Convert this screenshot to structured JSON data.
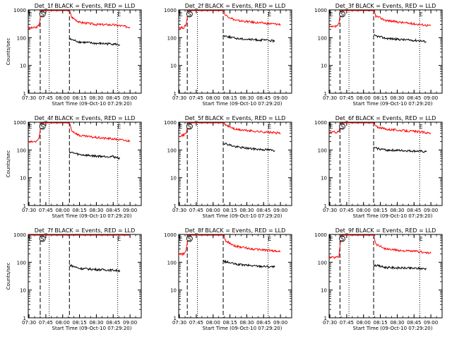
{
  "chart_data": [
    {
      "type": "line",
      "title": "Det_1f BLACK = Events, RED = LLD",
      "xlabel": "Start Time (09-Oct-10 07:29:20)",
      "ylabel": "Counts/sec",
      "yscale": "log",
      "ylim": [
        1,
        1000
      ],
      "x_ticks": [
        "07:30",
        "07:45",
        "08:00",
        "08:15",
        "08:30",
        "08:45",
        "09:00"
      ],
      "y_ticks": [
        "1",
        "10",
        "100",
        "1000"
      ],
      "markers": [
        {
          "label": "E",
          "time": "07:30"
        },
        {
          "label": "S",
          "time": "07:42"
        },
        {
          "label": "E",
          "time": "08:49"
        }
      ],
      "dashed_times": [
        "07:40",
        "08:06"
      ],
      "dotted_times": [
        "07:48",
        "08:49"
      ],
      "series": [
        {
          "name": "RED",
          "color": "#ff0000",
          "points": [
            [
              "07:29:20",
              220
            ],
            [
              "07:36",
              230
            ],
            [
              "07:39",
              280
            ],
            [
              "07:41",
              1000
            ],
            [
              "08:05",
              1000
            ],
            [
              "08:06",
              1000
            ],
            [
              "08:08",
              550
            ],
            [
              "08:15",
              360
            ],
            [
              "08:30",
              300
            ],
            [
              "08:45",
              290
            ],
            [
              "09:00",
              240
            ]
          ]
        },
        {
          "name": "BLACK",
          "color": "#000000",
          "points": [
            [
              "08:06",
              90
            ],
            [
              "08:15",
              70
            ],
            [
              "08:30",
              62
            ],
            [
              "08:45",
              60
            ],
            [
              "08:51",
              55
            ]
          ]
        }
      ]
    },
    {
      "type": "line",
      "title": "Det_2f BLACK = Events, RED = LLD",
      "xlabel": "Start Time (09-Oct-10 07:29:20)",
      "ylabel": "",
      "yscale": "log",
      "ylim": [
        1,
        1000
      ],
      "x_ticks": [
        "07:30",
        "07:45",
        "08:00",
        "08:15",
        "08:30",
        "08:45",
        "09:00"
      ],
      "y_ticks": [
        "1",
        "10",
        "100",
        "1000"
      ],
      "markers": [
        {
          "label": "E",
          "time": "07:30"
        },
        {
          "label": "S",
          "time": "07:39"
        },
        {
          "label": "E",
          "time": "08:49"
        }
      ],
      "dashed_times": [
        "07:37",
        "08:09"
      ],
      "dotted_times": [
        "07:46",
        "08:49"
      ],
      "series": [
        {
          "name": "RED",
          "color": "#ff0000",
          "points": [
            [
              "07:29:20",
              230
            ],
            [
              "07:34",
              230
            ],
            [
              "07:36",
              300
            ],
            [
              "07:38",
              1000
            ],
            [
              "08:08",
              1000
            ],
            [
              "08:09",
              1000
            ],
            [
              "08:11",
              650
            ],
            [
              "08:20",
              420
            ],
            [
              "08:35",
              360
            ],
            [
              "08:50",
              320
            ],
            [
              "09:00",
              300
            ]
          ]
        },
        {
          "name": "BLACK",
          "color": "#000000",
          "points": [
            [
              "08:09",
              120
            ],
            [
              "08:20",
              95
            ],
            [
              "08:35",
              85
            ],
            [
              "08:50",
              80
            ],
            [
              "08:55",
              75
            ]
          ]
        }
      ]
    },
    {
      "type": "line",
      "title": "Det_3f BLACK = Events, RED = LLD",
      "xlabel": "Start Time (09-Oct-10 07:29:20)",
      "ylabel": "",
      "yscale": "log",
      "ylim": [
        1,
        1000
      ],
      "x_ticks": [
        "07:30",
        "07:45",
        "08:00",
        "08:15",
        "08:30",
        "08:45",
        "09:00"
      ],
      "y_ticks": [
        "1",
        "10",
        "100",
        "1000"
      ],
      "markers": [
        {
          "label": "E",
          "time": "07:30"
        },
        {
          "label": "S",
          "time": "07:41"
        },
        {
          "label": "E",
          "time": "08:50"
        }
      ],
      "dashed_times": [
        "07:39",
        "08:09"
      ],
      "dotted_times": [
        "07:47",
        "08:50"
      ],
      "series": [
        {
          "name": "RED",
          "color": "#ff0000",
          "points": [
            [
              "07:29:20",
              240
            ],
            [
              "07:35",
              250
            ],
            [
              "07:38",
              300
            ],
            [
              "07:40",
              1000
            ],
            [
              "08:08",
              1000
            ],
            [
              "08:09",
              1000
            ],
            [
              "08:11",
              600
            ],
            [
              "08:20",
              420
            ],
            [
              "08:35",
              350
            ],
            [
              "08:50",
              300
            ],
            [
              "09:00",
              270
            ]
          ]
        },
        {
          "name": "BLACK",
          "color": "#000000",
          "points": [
            [
              "08:09",
              120
            ],
            [
              "08:20",
              95
            ],
            [
              "08:35",
              85
            ],
            [
              "08:50",
              78
            ],
            [
              "08:56",
              72
            ]
          ]
        }
      ]
    },
    {
      "type": "line",
      "title": "Det_4f BLACK = Events, RED = LLD",
      "xlabel": "Start Time (09-Oct-10 07:29:20)",
      "ylabel": "Counts/sec",
      "yscale": "log",
      "ylim": [
        1,
        1000
      ],
      "x_ticks": [
        "07:30",
        "07:45",
        "08:00",
        "08:15",
        "08:30",
        "08:45",
        "09:00"
      ],
      "y_ticks": [
        "1",
        "10",
        "100",
        "1000"
      ],
      "markers": [
        {
          "label": "E",
          "time": "07:30"
        },
        {
          "label": "S",
          "time": "07:42"
        },
        {
          "label": "E",
          "time": "08:49"
        }
      ],
      "dashed_times": [
        "07:40",
        "08:06"
      ],
      "dotted_times": [
        "07:48",
        "08:49"
      ],
      "series": [
        {
          "name": "RED",
          "color": "#ff0000",
          "points": [
            [
              "07:29:20",
              190
            ],
            [
              "07:36",
              200
            ],
            [
              "07:39",
              260
            ],
            [
              "07:41",
              1000
            ],
            [
              "08:05",
              1000
            ],
            [
              "08:06",
              1000
            ],
            [
              "08:08",
              500
            ],
            [
              "08:15",
              330
            ],
            [
              "08:30",
              280
            ],
            [
              "08:45",
              250
            ],
            [
              "09:00",
              210
            ]
          ]
        },
        {
          "name": "BLACK",
          "color": "#000000",
          "points": [
            [
              "08:06",
              85
            ],
            [
              "08:15",
              68
            ],
            [
              "08:30",
              60
            ],
            [
              "08:45",
              58
            ],
            [
              "08:51",
              50
            ]
          ]
        }
      ]
    },
    {
      "type": "line",
      "title": "Det_5f BLACK = Events, RED = LLD",
      "xlabel": "Start Time (09-Oct-10 07:29:20)",
      "ylabel": "",
      "yscale": "log",
      "ylim": [
        1,
        1000
      ],
      "x_ticks": [
        "07:30",
        "07:45",
        "08:00",
        "08:15",
        "08:30",
        "08:45",
        "09:00"
      ],
      "y_ticks": [
        "1",
        "10",
        "100",
        "1000"
      ],
      "markers": [
        {
          "label": "E",
          "time": "07:30"
        },
        {
          "label": "S",
          "time": "07:39"
        },
        {
          "label": "E",
          "time": "08:49"
        }
      ],
      "dashed_times": [
        "07:37",
        "08:09"
      ],
      "dotted_times": [
        "07:46",
        "08:49"
      ],
      "series": [
        {
          "name": "RED",
          "color": "#ff0000",
          "points": [
            [
              "07:29:20",
              330
            ],
            [
              "07:34",
              340
            ],
            [
              "07:36",
              420
            ],
            [
              "07:38",
              1000
            ],
            [
              "08:08",
              1000
            ],
            [
              "08:09",
              1000
            ],
            [
              "08:11",
              800
            ],
            [
              "08:20",
              550
            ],
            [
              "08:35",
              480
            ],
            [
              "08:50",
              430
            ],
            [
              "09:00",
              400
            ]
          ]
        },
        {
          "name": "BLACK",
          "color": "#000000",
          "points": [
            [
              "08:09",
              180
            ],
            [
              "08:20",
              130
            ],
            [
              "08:35",
              110
            ],
            [
              "08:50",
              100
            ],
            [
              "08:55",
              95
            ]
          ]
        }
      ]
    },
    {
      "type": "line",
      "title": "Det_6f BLACK = Events, RED = LLD",
      "xlabel": "Start Time (09-Oct-10 07:29:20)",
      "ylabel": "",
      "yscale": "log",
      "ylim": [
        1,
        1000
      ],
      "x_ticks": [
        "07:30",
        "07:45",
        "08:00",
        "08:15",
        "08:30",
        "08:45",
        "09:00"
      ],
      "y_ticks": [
        "1",
        "10",
        "100",
        "1000"
      ],
      "markers": [
        {
          "label": "E",
          "time": "07:30"
        },
        {
          "label": "S",
          "time": "07:41"
        },
        {
          "label": "E",
          "time": "08:50"
        }
      ],
      "dashed_times": [
        "07:39",
        "08:09"
      ],
      "dotted_times": [
        "07:47",
        "08:50"
      ],
      "series": [
        {
          "name": "RED",
          "color": "#ff0000",
          "points": [
            [
              "07:29:20",
              430
            ],
            [
              "07:35",
              440
            ],
            [
              "07:38",
              450
            ],
            [
              "07:40",
              1000
            ],
            [
              "08:08",
              1000
            ],
            [
              "08:09",
              1000
            ],
            [
              "08:11",
              700
            ],
            [
              "08:20",
              560
            ],
            [
              "08:35",
              500
            ],
            [
              "08:50",
              450
            ],
            [
              "09:00",
              400
            ]
          ]
        },
        {
          "name": "BLACK",
          "color": "#000000",
          "points": [
            [
              "08:09",
              120
            ],
            [
              "08:20",
              100
            ],
            [
              "08:35",
              95
            ],
            [
              "08:50",
              90
            ],
            [
              "08:56",
              85
            ]
          ]
        }
      ]
    },
    {
      "type": "line",
      "title": "Det_7f BLACK = Events, RED = LLD",
      "xlabel": "Start Time (09-Oct-10 07:29:20)",
      "ylabel": "Counts/sec",
      "yscale": "log",
      "ylim": [
        1,
        1000
      ],
      "x_ticks": [
        "07:30",
        "07:45",
        "08:00",
        "08:15",
        "08:30",
        "08:45",
        "09:00"
      ],
      "y_ticks": [
        "1",
        "10",
        "100",
        "1000"
      ],
      "markers": [
        {
          "label": "E",
          "time": "07:30"
        },
        {
          "label": "S",
          "time": "07:42"
        },
        {
          "label": "E",
          "time": "08:49"
        }
      ],
      "dashed_times": [
        "07:40",
        "08:06"
      ],
      "dotted_times": [
        "07:48",
        "08:49"
      ],
      "series": [
        {
          "name": "RED",
          "color": "#ff0000",
          "points": [
            [
              "07:29:20",
              1000
            ],
            [
              "08:05",
              1000
            ],
            [
              "08:06",
              1000
            ],
            [
              "09:00",
              1000
            ]
          ]
        },
        {
          "name": "BLACK",
          "color": "#000000",
          "points": [
            [
              "08:06",
              80
            ],
            [
              "08:15",
              60
            ],
            [
              "08:30",
              55
            ],
            [
              "08:45",
              52
            ],
            [
              "08:51",
              50
            ]
          ]
        }
      ]
    },
    {
      "type": "line",
      "title": "Det_8f BLACK = Events, RED = LLD",
      "xlabel": "Start Time (09-Oct-10 07:29:20)",
      "ylabel": "",
      "yscale": "log",
      "ylim": [
        1,
        1000
      ],
      "x_ticks": [
        "07:30",
        "07:45",
        "08:00",
        "08:15",
        "08:30",
        "08:45",
        "09:00"
      ],
      "y_ticks": [
        "1",
        "10",
        "100",
        "1000"
      ],
      "markers": [
        {
          "label": "E",
          "time": "07:30"
        },
        {
          "label": "S",
          "time": "07:39"
        },
        {
          "label": "E",
          "time": "08:49"
        }
      ],
      "dashed_times": [
        "07:37",
        "08:09"
      ],
      "dotted_times": [
        "07:46",
        "08:49"
      ],
      "series": [
        {
          "name": "RED",
          "color": "#ff0000",
          "points": [
            [
              "07:29:20",
              190
            ],
            [
              "07:34",
              200
            ],
            [
              "07:36",
              260
            ],
            [
              "07:38",
              1000
            ],
            [
              "08:08",
              1000
            ],
            [
              "08:09",
              1000
            ],
            [
              "08:11",
              600
            ],
            [
              "08:20",
              380
            ],
            [
              "08:35",
              300
            ],
            [
              "08:50",
              270
            ],
            [
              "09:00",
              240
            ]
          ]
        },
        {
          "name": "BLACK",
          "color": "#000000",
          "points": [
            [
              "08:09",
              110
            ],
            [
              "08:20",
              85
            ],
            [
              "08:35",
              75
            ],
            [
              "08:50",
              70
            ],
            [
              "08:55",
              68
            ]
          ]
        }
      ]
    },
    {
      "type": "line",
      "title": "Det_9f BLACK = Events, RED = LLD",
      "xlabel": "Start Time (09-Oct-10 07:29:20)",
      "ylabel": "",
      "yscale": "log",
      "ylim": [
        1,
        1000
      ],
      "x_ticks": [
        "07:30",
        "07:45",
        "08:00",
        "08:15",
        "08:30",
        "08:45",
        "09:00"
      ],
      "y_ticks": [
        "1",
        "10",
        "100",
        "1000"
      ],
      "markers": [
        {
          "label": "E",
          "time": "07:30"
        },
        {
          "label": "S",
          "time": "07:41"
        },
        {
          "label": "E",
          "time": "08:50"
        }
      ],
      "dashed_times": [
        "07:39",
        "08:09"
      ],
      "dotted_times": [
        "07:47",
        "08:50"
      ],
      "series": [
        {
          "name": "RED",
          "color": "#ff0000",
          "points": [
            [
              "07:29:20",
              150
            ],
            [
              "07:35",
              150
            ],
            [
              "07:38",
              160
            ],
            [
              "07:40",
              1000
            ],
            [
              "08:08",
              1000
            ],
            [
              "08:09",
              1000
            ],
            [
              "08:11",
              450
            ],
            [
              "08:20",
              300
            ],
            [
              "08:35",
              260
            ],
            [
              "08:50",
              240
            ],
            [
              "09:00",
              210
            ]
          ]
        },
        {
          "name": "BLACK",
          "color": "#000000",
          "points": [
            [
              "08:09",
              80
            ],
            [
              "08:20",
              65
            ],
            [
              "08:35",
              62
            ],
            [
              "08:50",
              60
            ],
            [
              "08:56",
              58
            ]
          ]
        }
      ]
    }
  ]
}
